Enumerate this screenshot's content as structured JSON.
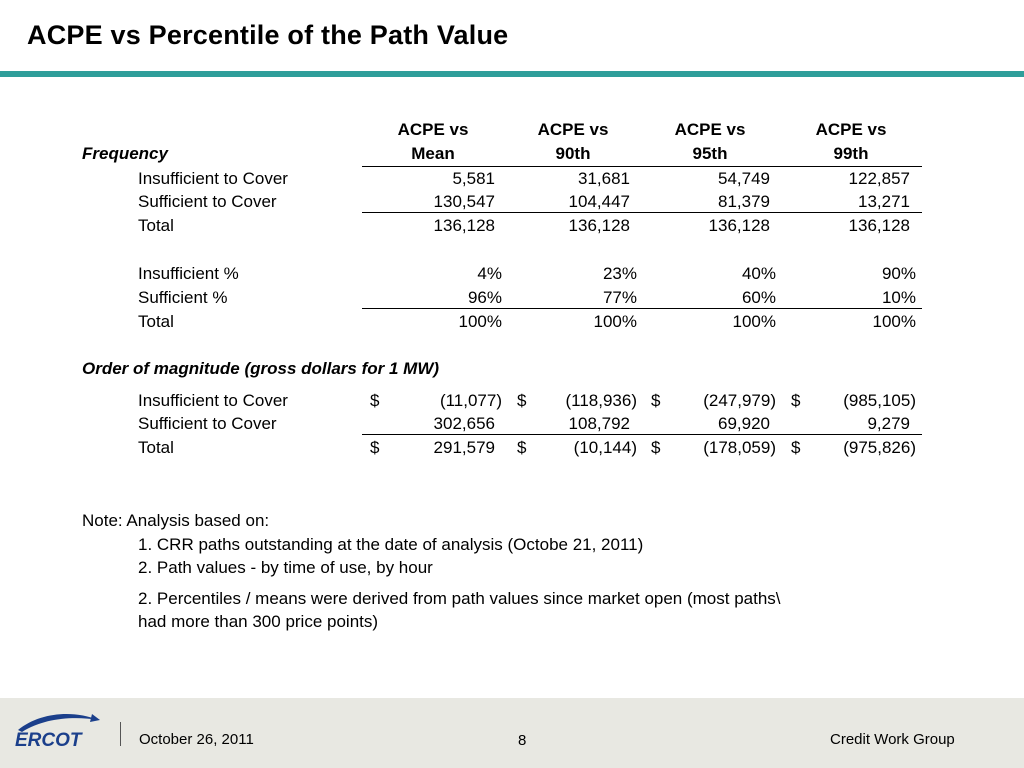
{
  "title": "ACPE vs Percentile of the Path Value",
  "columns": [
    {
      "line1": "ACPE vs",
      "line2": "Mean"
    },
    {
      "line1": "ACPE vs",
      "line2": "90th"
    },
    {
      "line1": "ACPE vs",
      "line2": "95th"
    },
    {
      "line1": "ACPE vs",
      "line2": "99th"
    }
  ],
  "frequency": {
    "heading": "Frequency",
    "rows": [
      {
        "label": "Insufficient to Cover",
        "values": [
          "5,581",
          "31,681",
          "54,749",
          "122,857"
        ]
      },
      {
        "label": "Sufficient to Cover",
        "values": [
          "130,547",
          "104,447",
          "81,379",
          "13,271"
        ]
      },
      {
        "label": "Total",
        "values": [
          "136,128",
          "136,128",
          "136,128",
          "136,128"
        ]
      }
    ],
    "pct_rows": [
      {
        "label": "Insufficient %",
        "values": [
          "4%",
          "23%",
          "40%",
          "90%"
        ]
      },
      {
        "label": "Sufficient %",
        "values": [
          "96%",
          "77%",
          "60%",
          "10%"
        ]
      },
      {
        "label": "Total",
        "values": [
          "100%",
          "100%",
          "100%",
          "100%"
        ]
      }
    ]
  },
  "magnitude": {
    "heading": "Order of magnitude (gross dollars for 1 MW)",
    "rows": [
      {
        "label": "Insufficient to Cover",
        "dollar": [
          "$",
          "$",
          "$",
          "$"
        ],
        "values": [
          "(11,077)",
          "(118,936)",
          "(247,979)",
          "(985,105)"
        ]
      },
      {
        "label": "Sufficient to Cover",
        "dollar": [
          "",
          "",
          "",
          ""
        ],
        "values": [
          "302,656",
          "108,792",
          "69,920",
          "9,279"
        ]
      },
      {
        "label": "Total",
        "dollar": [
          "$",
          "$",
          "$",
          "$"
        ],
        "values": [
          "291,579",
          "(10,144)",
          "(178,059)",
          "(975,826)"
        ]
      }
    ]
  },
  "note": {
    "intro": "Note:  Analysis based on:",
    "items": [
      "1.  CRR paths outstanding at the date of analysis (Octobe 21, 2011)",
      "2.  Path values - by time of use, by hour",
      "2.  Percentiles / means were derived from path values since market open (most paths\\",
      "had more than 300 price points)"
    ]
  },
  "footer": {
    "logo_text": "ERCOT",
    "date": "October 26, 2011",
    "page": "8",
    "group": "Credit Work Group"
  },
  "colors": {
    "accent": "#2f9e9a",
    "logo": "#1b3f8b",
    "footer_bg": "#e8e8e2"
  }
}
